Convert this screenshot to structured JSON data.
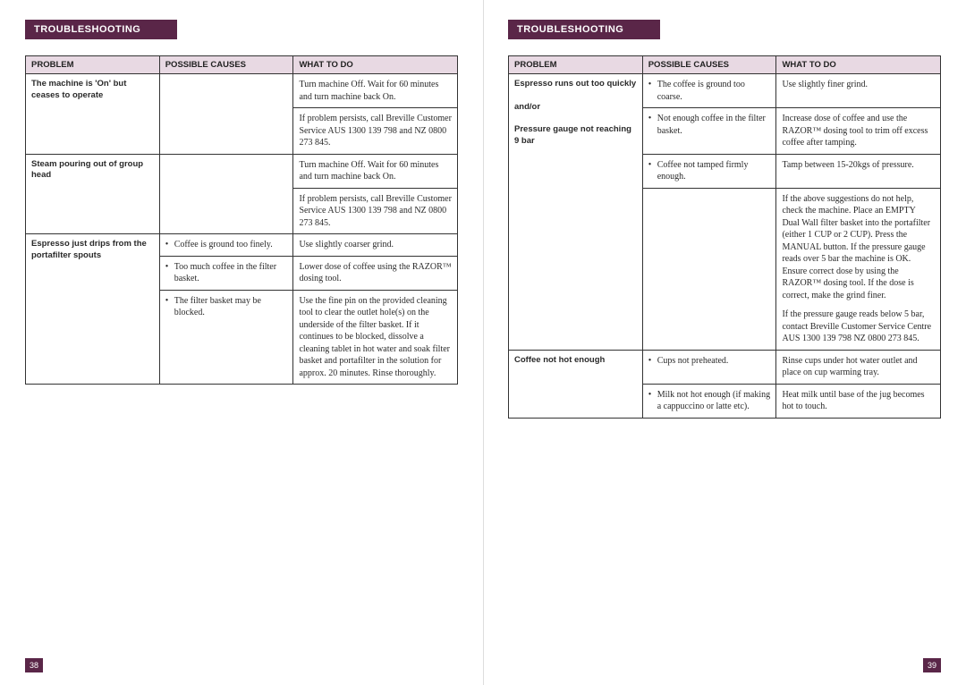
{
  "colors": {
    "banner_bg": "#5a2648",
    "banner_text": "#ffffff",
    "header_bg": "#e8d9e3",
    "border": "#333333",
    "page_bg": "#ffffff",
    "text": "#2a2a2a"
  },
  "typography": {
    "body_font": "Georgia, serif",
    "heading_font": "Arial, sans-serif",
    "body_size_pt": 10,
    "header_size_pt": 9.5,
    "banner_size_pt": 11
  },
  "left_page": {
    "banner": "TROUBLESHOOTING",
    "page_number": "38",
    "headers": {
      "problem": "PROBLEM",
      "causes": "POSSIBLE CAUSES",
      "todo": "WHAT TO DO"
    },
    "rows": [
      {
        "problem": "The machine is 'On' but ceases to operate",
        "problem_rowspan": 2,
        "items": [
          {
            "cause": "",
            "todo": "Turn machine Off. Wait for 60 minutes and turn machine back On."
          },
          {
            "cause": "",
            "todo": "If problem persists, call Breville Customer Service AUS 1300 139 798 and NZ 0800 273 845."
          }
        ]
      },
      {
        "problem": "Steam pouring out of group head",
        "problem_rowspan": 2,
        "items": [
          {
            "cause": "",
            "todo": "Turn machine Off. Wait for 60 minutes and turn machine back On."
          },
          {
            "cause": "",
            "todo": "If problem persists, call Breville Customer Service AUS 1300 139 798 and NZ 0800 273 845."
          }
        ]
      },
      {
        "problem": "Espresso just drips from the portafilter spouts",
        "problem_rowspan": 3,
        "items": [
          {
            "cause": "Coffee is ground too finely.",
            "todo": "Use slightly coarser grind."
          },
          {
            "cause": "Too much coffee in the filter basket.",
            "todo": "Lower dose of coffee using the RAZOR™ dosing tool."
          },
          {
            "cause": "The filter basket may be blocked.",
            "todo": "Use the fine pin on the provided cleaning tool to clear the outlet hole(s) on the underside of the filter basket. If it continues to be blocked, dissolve a cleaning tablet in hot water and soak filter basket and portafilter in the solution for approx. 20 minutes. Rinse thoroughly."
          }
        ]
      }
    ]
  },
  "right_page": {
    "banner": "TROUBLESHOOTING",
    "page_number": "39",
    "headers": {
      "problem": "PROBLEM",
      "causes": "POSSIBLE CAUSES",
      "todo": "WHAT TO DO"
    },
    "rows": [
      {
        "problem_lines": [
          "Espresso runs out too quickly",
          "",
          "and/or",
          "",
          "Pressure gauge not reaching 9 bar"
        ],
        "problem_rowspan": 4,
        "items": [
          {
            "cause": "The coffee is ground too coarse.",
            "todo": "Use slightly finer grind."
          },
          {
            "cause": "Not enough coffee in the filter basket.",
            "todo": "Increase dose of coffee and use the RAZOR™ dosing tool to trim off excess coffee after tamping."
          },
          {
            "cause": "Coffee not tamped firmly enough.",
            "todo": "Tamp between 15-20kgs of pressure."
          },
          {
            "cause": "",
            "todo_paras": [
              "If the above suggestions do not help, check the machine. Place an EMPTY Dual Wall filter basket into the portafilter (either 1 CUP or 2 CUP). Press the MANUAL button. If the pressure gauge reads over 5 bar the machine is OK. Ensure correct dose by using the RAZOR™ dosing tool. If the dose is correct, make the grind finer.",
              "If the pressure gauge reads below 5 bar, contact Breville Customer Service Centre AUS 1300 139 798 NZ 0800 273 845."
            ]
          }
        ]
      },
      {
        "problem": "Coffee not hot enough",
        "problem_rowspan": 2,
        "items": [
          {
            "cause": "Cups not preheated.",
            "todo": "Rinse cups under hot water outlet and place on cup warming tray."
          },
          {
            "cause": "Milk not hot enough (if making a cappuccino or latte etc).",
            "todo": "Heat milk until base of the jug becomes hot to touch."
          }
        ]
      }
    ]
  }
}
